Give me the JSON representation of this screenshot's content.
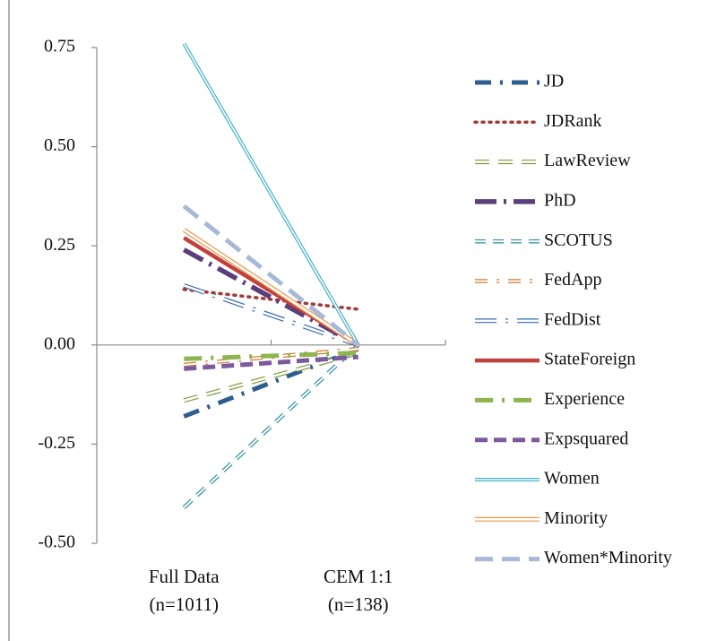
{
  "chart_data": {
    "type": "line",
    "categories": [
      "Full Data (n=1011)",
      "CEM 1:1 (n=138)"
    ],
    "ylim": [
      -0.5,
      0.75
    ],
    "yticks": [
      {
        "value": -0.5,
        "label": "-0.50"
      },
      -0.25,
      {
        "value": 0,
        "label": "0.00"
      },
      0.25,
      {
        "value": 0.5,
        "label": "0.50"
      },
      0.75
    ],
    "legend": "right",
    "series": [
      {
        "name": "JD",
        "color": "#2e5d8f",
        "values": [
          -0.18,
          -0.01
        ]
      },
      {
        "name": "JDRank",
        "color": "#a23a36",
        "values": [
          0.14,
          0.09
        ]
      },
      {
        "name": "LawReview",
        "color": "#7f9a3e",
        "values": [
          -0.14,
          -0.02
        ]
      },
      {
        "name": "PhD",
        "color": "#5b3e7a",
        "values": [
          0.24,
          0.0
        ]
      },
      {
        "name": "SCOTUS",
        "color": "#2f8fa3",
        "values": [
          -0.41,
          0.0
        ]
      },
      {
        "name": "FedApp",
        "color": "#d07a2a",
        "values": [
          -0.05,
          -0.01
        ]
      },
      {
        "name": "FedDist",
        "color": "#3a6db0",
        "values": [
          0.15,
          0.0
        ]
      },
      {
        "name": "StateForeign",
        "color": "#c2413d",
        "values": [
          0.27,
          0.0
        ]
      },
      {
        "name": "Experience",
        "color": "#8db64f",
        "values": [
          -0.035,
          -0.02
        ]
      },
      {
        "name": "Expsquared",
        "color": "#7d5a9e",
        "values": [
          -0.06,
          -0.03
        ]
      },
      {
        "name": "Women",
        "color": "#45b1c7",
        "values": [
          0.76,
          0.0
        ]
      },
      {
        "name": "Minority",
        "color": "#f0944a",
        "values": [
          0.29,
          0.0
        ]
      },
      {
        "name": "Women*Minority",
        "color": "#a7b8d8",
        "values": [
          0.35,
          0.0
        ]
      }
    ]
  }
}
